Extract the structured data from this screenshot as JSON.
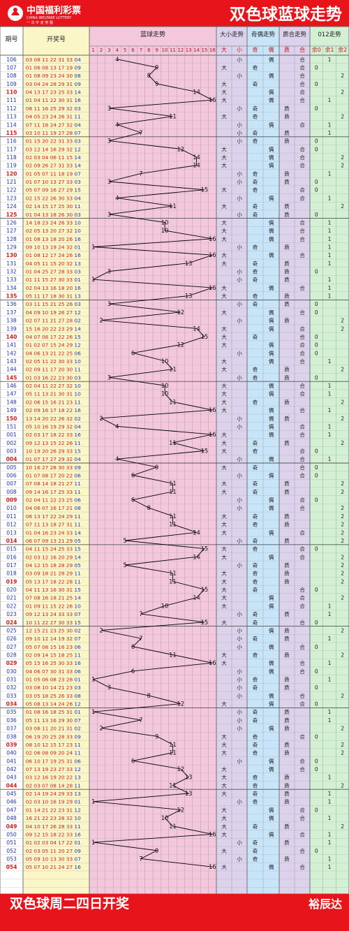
{
  "header": {
    "logo_text": "中国福利彩票",
    "logo_sub": "CHINA WELFARE LOTTERY",
    "logo_tag": "一 次 中 走 势 图",
    "title": "双色球蓝球走势"
  },
  "columns": {
    "issue": "期号",
    "draw": "开奖号",
    "blue": "蓝球走势",
    "size": "大小走势",
    "parity": "奇偶走势",
    "prime": "质合走势",
    "mod": "012走势",
    "size_labels": [
      "大",
      "小"
    ],
    "parity_labels": [
      "奇",
      "偶"
    ],
    "prime_labels": [
      "质",
      "合"
    ],
    "mod_labels": [
      "余0",
      "余1",
      "余2"
    ],
    "blue_numbers": [
      "1",
      "2",
      "3",
      "4",
      "5",
      "6",
      "7",
      "8",
      "9",
      "10",
      "11",
      "12",
      "13",
      "14",
      "15",
      "16"
    ]
  },
  "footer": {
    "left": "双色球周二四日开奖",
    "right": "裕辰达"
  },
  "colors": {
    "red": "#e8141b",
    "draw_red": "#d42020",
    "draw_blue": "#1e35b8",
    "grid": "#8a8a8a",
    "pink": "#f4c8dc",
    "yellow": "#fbf6c8",
    "purple": "#dcd2ec",
    "blue": "#c8e4f8",
    "green": "#d4f0d4"
  },
  "chart_data": {
    "type": "table",
    "x_axis": "期号",
    "y_axis": "蓝球号码",
    "draws": [
      {
        "issue": "106",
        "reds": [
          "03",
          "08",
          "11",
          "22",
          "31",
          "33"
        ],
        "blue": "04"
      },
      {
        "issue": "107",
        "reds": [
          "01",
          "06",
          "08",
          "13",
          "17",
          "19"
        ],
        "blue": "09"
      },
      {
        "issue": "108",
        "reds": [
          "01",
          "08",
          "09",
          "23",
          "24",
          "30"
        ],
        "blue": "08"
      },
      {
        "issue": "109",
        "reds": [
          "03",
          "04",
          "24",
          "28",
          "29",
          "31"
        ],
        "blue": "09"
      },
      {
        "issue": "110",
        "reds": [
          "04",
          "13",
          "17",
          "23",
          "25",
          "33"
        ],
        "blue": "14"
      },
      {
        "issue": "111",
        "reds": [
          "01",
          "04",
          "11",
          "22",
          "30",
          "31"
        ],
        "blue": "16"
      },
      {
        "issue": "112",
        "reds": [
          "08",
          "11",
          "16",
          "25",
          "29",
          "32"
        ],
        "blue": "03"
      },
      {
        "issue": "113",
        "reds": [
          "04",
          "05",
          "23",
          "24",
          "26",
          "31"
        ],
        "blue": "11"
      },
      {
        "issue": "114",
        "reds": [
          "07",
          "11",
          "18",
          "24",
          "27",
          "32"
        ],
        "blue": "04"
      },
      {
        "issue": "115",
        "reds": [
          "03",
          "10",
          "11",
          "19",
          "27",
          "28"
        ],
        "blue": "07"
      },
      {
        "issue": "116",
        "reds": [
          "01",
          "15",
          "20",
          "22",
          "31",
          "33"
        ],
        "blue": "03"
      },
      {
        "issue": "117",
        "reds": [
          "03",
          "12",
          "14",
          "16",
          "29",
          "32"
        ],
        "blue": "12"
      },
      {
        "issue": "118",
        "reds": [
          "02",
          "03",
          "04",
          "06",
          "11",
          "15"
        ],
        "blue": "14"
      },
      {
        "issue": "119",
        "reds": [
          "02",
          "09",
          "26",
          "27",
          "31",
          "33"
        ],
        "blue": "14"
      },
      {
        "issue": "120",
        "reds": [
          "01",
          "05",
          "07",
          "11",
          "18",
          "19"
        ],
        "blue": "07"
      },
      {
        "issue": "121",
        "reds": [
          "01",
          "07",
          "10",
          "13",
          "27",
          "33"
        ],
        "blue": "03"
      },
      {
        "issue": "122",
        "reds": [
          "05",
          "07",
          "09",
          "16",
          "27",
          "29"
        ],
        "blue": "15"
      },
      {
        "issue": "123",
        "reds": [
          "02",
          "15",
          "22",
          "26",
          "30",
          "33"
        ],
        "blue": "04"
      },
      {
        "issue": "124",
        "reds": [
          "02",
          "14",
          "15",
          "17",
          "25",
          "30"
        ],
        "blue": "11"
      },
      {
        "issue": "125",
        "reds": [
          "01",
          "04",
          "13",
          "18",
          "26",
          "30"
        ],
        "blue": "03"
      },
      {
        "issue": "126",
        "reds": [
          "14",
          "18",
          "23",
          "24",
          "26",
          "33"
        ],
        "blue": "10"
      },
      {
        "issue": "127",
        "reds": [
          "02",
          "05",
          "13",
          "20",
          "27",
          "32"
        ],
        "blue": "10"
      },
      {
        "issue": "128",
        "reds": [
          "01",
          "08",
          "13",
          "18",
          "20",
          "26"
        ],
        "blue": "16"
      },
      {
        "issue": "129",
        "reds": [
          "09",
          "10",
          "13",
          "19",
          "24",
          "32"
        ],
        "blue": "01"
      },
      {
        "issue": "130",
        "reds": [
          "01",
          "08",
          "12",
          "17",
          "24",
          "26"
        ],
        "blue": "16"
      },
      {
        "issue": "131",
        "reds": [
          "04",
          "05",
          "11",
          "15",
          "20",
          "32"
        ],
        "blue": "13"
      },
      {
        "issue": "132",
        "reds": [
          "01",
          "04",
          "25",
          "27",
          "28",
          "33"
        ],
        "blue": "03"
      },
      {
        "issue": "133",
        "reds": [
          "01",
          "11",
          "15",
          "27",
          "30",
          "33"
        ],
        "blue": "01"
      },
      {
        "issue": "134",
        "reds": [
          "02",
          "04",
          "13",
          "16",
          "18",
          "20"
        ],
        "blue": "16"
      },
      {
        "issue": "135",
        "reds": [
          "05",
          "11",
          "17",
          "18",
          "30",
          "31"
        ],
        "blue": "13"
      },
      {
        "issue": "136",
        "reds": [
          "03",
          "11",
          "15",
          "21",
          "25",
          "26"
        ],
        "blue": "03"
      },
      {
        "issue": "137",
        "reds": [
          "04",
          "09",
          "10",
          "19",
          "26",
          "27"
        ],
        "blue": "12"
      },
      {
        "issue": "138",
        "reds": [
          "02",
          "07",
          "11",
          "21",
          "27",
          "28"
        ],
        "blue": "02"
      },
      {
        "issue": "139",
        "reds": [
          "15",
          "16",
          "20",
          "22",
          "23",
          "29"
        ],
        "blue": "14"
      },
      {
        "issue": "140",
        "reds": [
          "04",
          "07",
          "08",
          "17",
          "22",
          "26"
        ],
        "blue": "15"
      },
      {
        "issue": "141",
        "reds": [
          "01",
          "02",
          "07",
          "15",
          "24",
          "29"
        ],
        "blue": "12"
      },
      {
        "issue": "142",
        "reds": [
          "04",
          "06",
          "13",
          "21",
          "22",
          "25"
        ],
        "blue": "06"
      },
      {
        "issue": "143",
        "reds": [
          "02",
          "05",
          "11",
          "22",
          "30",
          "33"
        ],
        "blue": "10"
      },
      {
        "issue": "144",
        "reds": [
          "02",
          "09",
          "11",
          "17",
          "20",
          "30"
        ],
        "blue": "11"
      },
      {
        "issue": "145",
        "reds": [
          "01",
          "03",
          "16",
          "22",
          "23",
          "30"
        ],
        "blue": "03"
      },
      {
        "issue": "146",
        "reds": [
          "02",
          "04",
          "11",
          "22",
          "27",
          "32"
        ],
        "blue": "10"
      },
      {
        "issue": "147",
        "reds": [
          "05",
          "11",
          "13",
          "21",
          "30",
          "31"
        ],
        "blue": "10"
      },
      {
        "issue": "148",
        "reds": [
          "02",
          "06",
          "15",
          "16",
          "21",
          "23"
        ],
        "blue": "11"
      },
      {
        "issue": "149",
        "reds": [
          "02",
          "09",
          "16",
          "17",
          "18",
          "22"
        ],
        "blue": "16"
      },
      {
        "issue": "150",
        "reds": [
          "13",
          "14",
          "20",
          "22",
          "26",
          "32"
        ],
        "blue": "02"
      },
      {
        "issue": "151",
        "reds": [
          "05",
          "10",
          "16",
          "19",
          "29",
          "32"
        ],
        "blue": "04"
      },
      {
        "issue": "001",
        "reds": [
          "02",
          "03",
          "17",
          "18",
          "22",
          "33"
        ],
        "blue": "16"
      },
      {
        "issue": "002",
        "reds": [
          "09",
          "12",
          "13",
          "15",
          "22",
          "26"
        ],
        "blue": "11"
      },
      {
        "issue": "003",
        "reds": [
          "10",
          "19",
          "20",
          "26",
          "29",
          "33"
        ],
        "blue": "15"
      },
      {
        "issue": "004",
        "reds": [
          "01",
          "07",
          "17",
          "27",
          "29",
          "32"
        ],
        "blue": "04"
      },
      {
        "issue": "005",
        "reds": [
          "10",
          "16",
          "27",
          "28",
          "30",
          "33"
        ],
        "blue": "09"
      },
      {
        "issue": "006",
        "reds": [
          "01",
          "07",
          "08",
          "17",
          "20",
          "22"
        ],
        "blue": "06"
      },
      {
        "issue": "007",
        "reds": [
          "07",
          "08",
          "14",
          "18",
          "21",
          "27"
        ],
        "blue": "11"
      },
      {
        "issue": "008",
        "reds": [
          "09",
          "14",
          "16",
          "17",
          "25",
          "33"
        ],
        "blue": "11"
      },
      {
        "issue": "009",
        "reds": [
          "02",
          "04",
          "11",
          "22",
          "23",
          "25"
        ],
        "blue": "06"
      },
      {
        "issue": "010",
        "reds": [
          "04",
          "06",
          "07",
          "16",
          "17",
          "21"
        ],
        "blue": "08"
      },
      {
        "issue": "011",
        "reds": [
          "06",
          "13",
          "17",
          "22",
          "24",
          "29"
        ],
        "blue": "11"
      },
      {
        "issue": "012",
        "reds": [
          "07",
          "11",
          "13",
          "18",
          "27",
          "31"
        ],
        "blue": "11"
      },
      {
        "issue": "013",
        "reds": [
          "01",
          "04",
          "16",
          "23",
          "24",
          "33"
        ],
        "blue": "14"
      },
      {
        "issue": "014",
        "reds": [
          "06",
          "07",
          "09",
          "13",
          "21",
          "29"
        ],
        "blue": "05"
      },
      {
        "issue": "015",
        "reds": [
          "04",
          "11",
          "15",
          "24",
          "25",
          "33"
        ],
        "blue": "15"
      },
      {
        "issue": "016",
        "reds": [
          "02",
          "03",
          "12",
          "16",
          "20",
          "29"
        ],
        "blue": "14"
      },
      {
        "issue": "017",
        "reds": [
          "04",
          "12",
          "15",
          "18",
          "28",
          "29"
        ],
        "blue": "05"
      },
      {
        "issue": "018",
        "reds": [
          "03",
          "09",
          "18",
          "21",
          "28",
          "29"
        ],
        "blue": "11"
      },
      {
        "issue": "019",
        "reds": [
          "05",
          "13",
          "17",
          "18",
          "22",
          "28"
        ],
        "blue": "11"
      },
      {
        "issue": "020",
        "reds": [
          "04",
          "11",
          "13",
          "16",
          "30",
          "31"
        ],
        "blue": "15"
      },
      {
        "issue": "021",
        "reds": [
          "07",
          "08",
          "16",
          "18",
          "21",
          "25"
        ],
        "blue": "14"
      },
      {
        "issue": "022",
        "reds": [
          "01",
          "09",
          "11",
          "15",
          "22",
          "26"
        ],
        "blue": "10"
      },
      {
        "issue": "023",
        "reds": [
          "09",
          "12",
          "13",
          "24",
          "33",
          "33"
        ],
        "blue": "07"
      },
      {
        "issue": "024",
        "reds": [
          "10",
          "11",
          "22",
          "27",
          "30",
          "33"
        ],
        "blue": "15"
      },
      {
        "issue": "025",
        "reds": [
          "12",
          "15",
          "21",
          "23",
          "25",
          "30"
        ],
        "blue": "02"
      },
      {
        "issue": "026",
        "reds": [
          "09",
          "10",
          "12",
          "14",
          "19",
          "32"
        ],
        "blue": "07"
      },
      {
        "issue": "027",
        "reds": [
          "05",
          "07",
          "08",
          "15",
          "16",
          "23"
        ],
        "blue": "06"
      },
      {
        "issue": "028",
        "reds": [
          "02",
          "09",
          "14",
          "15",
          "18",
          "25"
        ],
        "blue": "11"
      },
      {
        "issue": "029",
        "reds": [
          "05",
          "15",
          "16",
          "25",
          "30",
          "33"
        ],
        "blue": "16"
      },
      {
        "issue": "030",
        "reds": [
          "04",
          "06",
          "07",
          "30",
          "31",
          "33"
        ],
        "blue": "06"
      },
      {
        "issue": "031",
        "reds": [
          "01",
          "05",
          "06",
          "08",
          "23",
          "28"
        ],
        "blue": "01"
      },
      {
        "issue": "032",
        "reds": [
          "03",
          "08",
          "10",
          "14",
          "21",
          "23"
        ],
        "blue": "03"
      },
      {
        "issue": "033",
        "reds": [
          "03",
          "05",
          "18",
          "25",
          "26",
          "33"
        ],
        "blue": "08"
      },
      {
        "issue": "034",
        "reds": [
          "05",
          "08",
          "13",
          "14",
          "24",
          "26"
        ],
        "blue": "12"
      },
      {
        "issue": "035",
        "reds": [
          "01",
          "08",
          "16",
          "18",
          "25",
          "31"
        ],
        "blue": "01"
      },
      {
        "issue": "036",
        "reds": [
          "05",
          "11",
          "13",
          "16",
          "29",
          "30"
        ],
        "blue": "07"
      },
      {
        "issue": "037",
        "reds": [
          "03",
          "06",
          "11",
          "20",
          "21",
          "31"
        ],
        "blue": "02"
      },
      {
        "issue": "038",
        "reds": [
          "06",
          "19",
          "20",
          "25",
          "28",
          "33"
        ],
        "blue": "09"
      },
      {
        "issue": "039",
        "reds": [
          "08",
          "10",
          "12",
          "15",
          "17",
          "23"
        ],
        "blue": "11"
      },
      {
        "issue": "040",
        "reds": [
          "02",
          "06",
          "08",
          "09",
          "20",
          "24"
        ],
        "blue": "11"
      },
      {
        "issue": "041",
        "reds": [
          "06",
          "10",
          "17",
          "19",
          "25",
          "31"
        ],
        "blue": "06"
      },
      {
        "issue": "042",
        "reds": [
          "07",
          "13",
          "19",
          "23",
          "27",
          "33"
        ],
        "blue": "12"
      },
      {
        "issue": "043",
        "reds": [
          "03",
          "12",
          "16",
          "19",
          "20",
          "22"
        ],
        "blue": "13"
      },
      {
        "issue": "044",
        "reds": [
          "02",
          "03",
          "07",
          "08",
          "14",
          "28"
        ],
        "blue": "11"
      },
      {
        "issue": "045",
        "reds": [
          "02",
          "14",
          "19",
          "24",
          "29",
          "33"
        ],
        "blue": "13"
      },
      {
        "issue": "046",
        "reds": [
          "02",
          "03",
          "10",
          "16",
          "19",
          "29"
        ],
        "blue": "01"
      },
      {
        "issue": "047",
        "reds": [
          "01",
          "14",
          "21",
          "22",
          "23",
          "31"
        ],
        "blue": "12"
      },
      {
        "issue": "048",
        "reds": [
          "16",
          "21",
          "22",
          "23",
          "28",
          "32"
        ],
        "blue": "10"
      },
      {
        "issue": "049",
        "reds": [
          "04",
          "10",
          "17",
          "26",
          "28",
          "33"
        ],
        "blue": "11"
      },
      {
        "issue": "050",
        "reds": [
          "09",
          "12",
          "15",
          "18",
          "22",
          "33"
        ],
        "blue": "16"
      },
      {
        "issue": "051",
        "reds": [
          "01",
          "02",
          "03",
          "04",
          "17",
          "22"
        ],
        "blue": "01"
      },
      {
        "issue": "052",
        "reds": [
          "02",
          "03",
          "05",
          "11",
          "20",
          "27"
        ],
        "blue": "09"
      },
      {
        "issue": "053",
        "reds": [
          "05",
          "09",
          "10",
          "13",
          "30",
          "33"
        ],
        "blue": "07"
      },
      {
        "issue": "054",
        "reds": [
          "05",
          "07",
          "10",
          "21",
          "24",
          "27"
        ],
        "blue": "16"
      }
    ]
  }
}
